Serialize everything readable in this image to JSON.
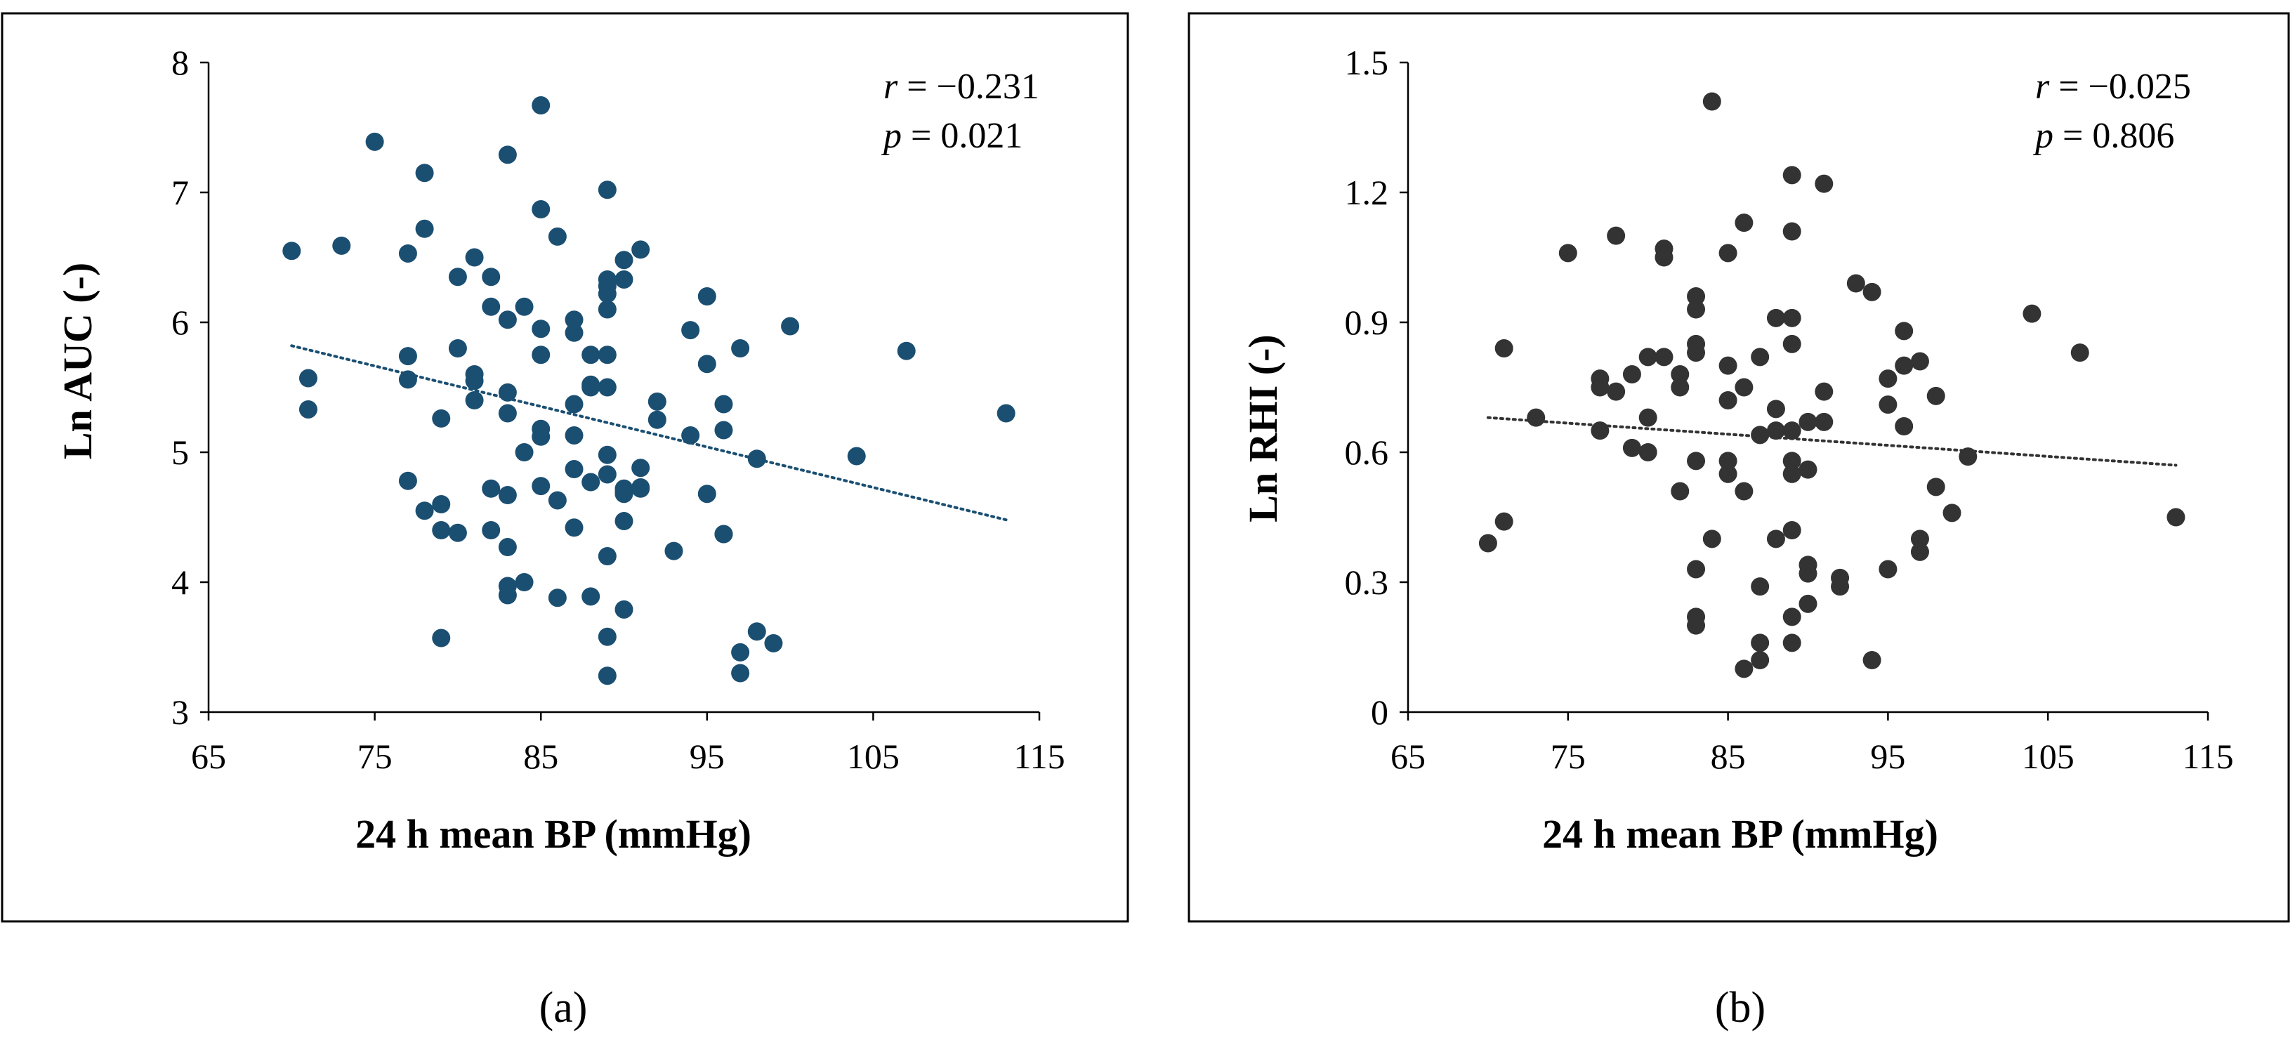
{
  "chart_data": [
    {
      "type": "scatter",
      "panel": "(a)",
      "xlabel": "24 h mean BP (mmHg)",
      "ylabel": "Ln AUC (-)",
      "xlim": [
        65,
        115
      ],
      "ylim": [
        3,
        8
      ],
      "xticks": [
        65,
        75,
        85,
        95,
        105,
        115
      ],
      "yticks": [
        3,
        4,
        5,
        6,
        7,
        8
      ],
      "grid": false,
      "marker_color": "#1b4f72",
      "trendline": {
        "style": "dotted",
        "color": "#1b4f72",
        "x": [
          70,
          113
        ],
        "y": [
          5.82,
          4.48
        ]
      },
      "stats": {
        "r_label": "r",
        "r_value": " = −0.231",
        "p_label": "p",
        "p_value": " = 0.021"
      },
      "x": [
        70,
        71,
        71,
        73,
        75,
        77,
        77,
        77,
        77,
        78,
        78,
        78,
        79,
        79,
        79,
        79,
        80,
        80,
        80,
        81,
        81,
        81,
        81,
        82,
        82,
        82,
        82,
        83,
        83,
        83,
        83,
        83,
        83,
        83,
        83,
        84,
        84,
        84,
        85,
        85,
        85,
        85,
        85,
        85,
        85,
        86,
        86,
        86,
        87,
        87,
        87,
        87,
        87,
        87,
        88,
        88,
        88,
        88,
        88,
        89,
        89,
        89,
        89,
        89,
        89,
        89,
        89,
        89,
        89,
        89,
        89,
        90,
        90,
        90,
        90,
        90,
        90,
        90,
        91,
        91,
        91,
        91,
        92,
        92,
        93,
        94,
        94,
        95,
        95,
        95,
        96,
        96,
        96,
        96,
        97,
        97,
        97,
        98,
        98,
        99,
        100,
        104,
        107,
        113
      ],
      "y": [
        6.55,
        5.57,
        5.33,
        6.59,
        7.39,
        6.53,
        5.74,
        5.56,
        4.78,
        7.15,
        6.72,
        4.55,
        5.26,
        4.6,
        4.4,
        3.57,
        6.35,
        5.8,
        4.38,
        6.5,
        5.6,
        5.55,
        5.4,
        6.35,
        6.12,
        4.72,
        4.4,
        7.29,
        6.02,
        5.46,
        5.3,
        4.67,
        4.27,
        3.97,
        3.9,
        6.12,
        5.0,
        4.0,
        7.67,
        6.87,
        5.95,
        5.75,
        5.18,
        5.12,
        4.74,
        6.66,
        4.63,
        3.88,
        6.02,
        5.92,
        5.37,
        5.13,
        4.87,
        4.42,
        5.75,
        5.52,
        5.5,
        4.77,
        3.89,
        7.02,
        6.33,
        6.28,
        6.22,
        6.1,
        5.75,
        5.5,
        4.98,
        4.83,
        4.2,
        3.58,
        3.28,
        6.48,
        6.33,
        4.7,
        4.47,
        3.79,
        4.68,
        4.72,
        6.56,
        4.88,
        4.72,
        4.73,
        5.39,
        5.25,
        4.24,
        5.94,
        5.13,
        6.2,
        5.68,
        4.68,
        5.37,
        5.17,
        4.37,
        4.37,
        5.8,
        3.46,
        3.3,
        4.95,
        3.62,
        3.53,
        5.97,
        4.97,
        5.78,
        5.3
      ]
    },
    {
      "type": "scatter",
      "panel": "(b)",
      "xlabel": "24 h mean BP (mmHg)",
      "ylabel": "Ln RHI (-)",
      "xlim": [
        65,
        115
      ],
      "ylim": [
        0,
        1.5
      ],
      "xticks": [
        65,
        75,
        85,
        95,
        105,
        115
      ],
      "yticks": [
        0,
        0.3,
        0.6,
        0.9,
        1.2,
        1.5
      ],
      "ytick_labels": [
        "0",
        "0.3",
        "0.6",
        "0.9",
        "1.2",
        "1.5"
      ],
      "grid": false,
      "marker_color": "#333333",
      "trendline": {
        "style": "dotted",
        "color": "#333333",
        "x": [
          70,
          113
        ],
        "y": [
          0.68,
          0.57
        ]
      },
      "stats": {
        "r_label": "r",
        "r_value": " = −0.025",
        "p_label": "p",
        "p_value": " = 0.806"
      },
      "x": [
        70,
        71,
        71,
        73,
        75,
        77,
        77,
        77,
        78,
        78,
        79,
        79,
        80,
        80,
        80,
        81,
        81,
        81,
        82,
        82,
        82,
        83,
        83,
        83,
        83,
        83,
        83,
        83,
        83,
        84,
        84,
        85,
        85,
        85,
        85,
        85,
        86,
        86,
        86,
        86,
        87,
        87,
        87,
        87,
        87,
        88,
        88,
        88,
        88,
        89,
        89,
        89,
        89,
        89,
        89,
        89,
        89,
        89,
        89,
        90,
        90,
        90,
        90,
        90,
        91,
        91,
        91,
        92,
        92,
        93,
        94,
        94,
        95,
        95,
        95,
        96,
        96,
        96,
        97,
        97,
        97,
        98,
        98,
        99,
        100,
        104,
        107,
        113
      ],
      "y": [
        0.39,
        0.84,
        0.44,
        0.68,
        1.06,
        0.77,
        0.75,
        0.65,
        1.1,
        0.74,
        0.78,
        0.61,
        0.82,
        0.68,
        0.6,
        1.07,
        1.05,
        0.82,
        0.78,
        0.75,
        0.51,
        0.96,
        0.93,
        0.85,
        0.83,
        0.58,
        0.33,
        0.22,
        0.2,
        1.41,
        0.4,
        1.06,
        0.8,
        0.72,
        0.58,
        0.55,
        1.13,
        0.75,
        0.51,
        0.1,
        0.82,
        0.64,
        0.29,
        0.16,
        0.12,
        0.91,
        0.7,
        0.65,
        0.4,
        1.24,
        1.11,
        0.91,
        0.85,
        0.65,
        0.58,
        0.55,
        0.42,
        0.22,
        0.16,
        0.67,
        0.56,
        0.34,
        0.32,
        0.25,
        1.22,
        0.74,
        0.67,
        0.31,
        0.29,
        0.99,
        0.97,
        0.12,
        0.77,
        0.71,
        0.33,
        0.88,
        0.66,
        0.8,
        0.81,
        0.4,
        0.37,
        0.73,
        0.52,
        0.46,
        0.59,
        0.92,
        0.83,
        0.45
      ]
    }
  ]
}
